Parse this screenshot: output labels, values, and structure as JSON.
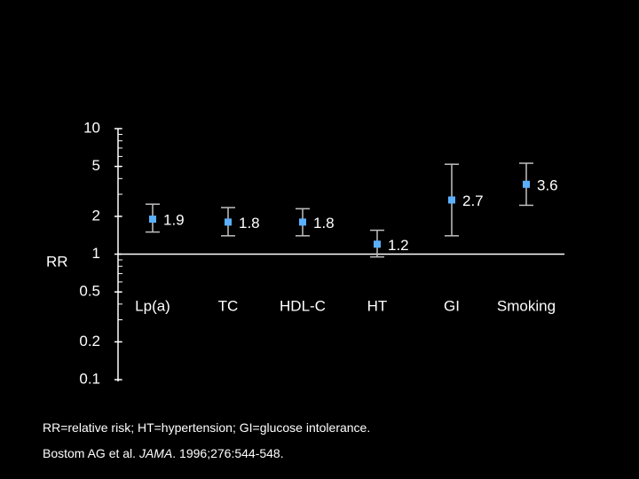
{
  "chart_data": {
    "type": "scatter",
    "ylabel": "RR",
    "yscale": "log",
    "ylim": [
      0.1,
      10
    ],
    "yticks": [
      {
        "value": 10,
        "label": "10"
      },
      {
        "value": 5,
        "label": "5"
      },
      {
        "value": 2,
        "label": "2"
      },
      {
        "value": 1,
        "label": "1"
      },
      {
        "value": 0.5,
        "label": "0.5"
      },
      {
        "value": 0.2,
        "label": "0.2"
      },
      {
        "value": 0.1,
        "label": "0.1"
      }
    ],
    "reference_line": 1,
    "categories": [
      "Lp(a)",
      "TC",
      "HDL-C",
      "HT",
      "GI",
      "Smoking"
    ],
    "points": [
      {
        "category": "Lp(a)",
        "value": 1.9,
        "label": "1.9",
        "ci": [
          1.5,
          2.5
        ]
      },
      {
        "category": "TC",
        "value": 1.8,
        "label": "1.8",
        "ci": [
          1.4,
          2.35
        ]
      },
      {
        "category": "HDL-C",
        "value": 1.8,
        "label": "1.8",
        "ci": [
          1.4,
          2.3
        ]
      },
      {
        "category": "HT",
        "value": 1.2,
        "label": "1.2",
        "ci": [
          0.95,
          1.55
        ]
      },
      {
        "category": "GI",
        "value": 2.7,
        "label": "2.7",
        "ci": [
          1.4,
          5.2
        ]
      },
      {
        "category": "Smoking",
        "value": 3.6,
        "label": "3.6",
        "ci": [
          2.45,
          5.3
        ]
      }
    ],
    "colors": {
      "marker": "#5ab0ff",
      "errorbar": "#c0c0c0",
      "axis": "#ffffff",
      "text": "#ffffff"
    }
  },
  "footnotes": {
    "definitions": "RR=relative risk; HT=hypertension; GI=glucose intolerance.",
    "citation_authors": "Bostom AG et al. ",
    "citation_journal": "JAMA",
    "citation_rest": ". 1996;276:544-548."
  }
}
